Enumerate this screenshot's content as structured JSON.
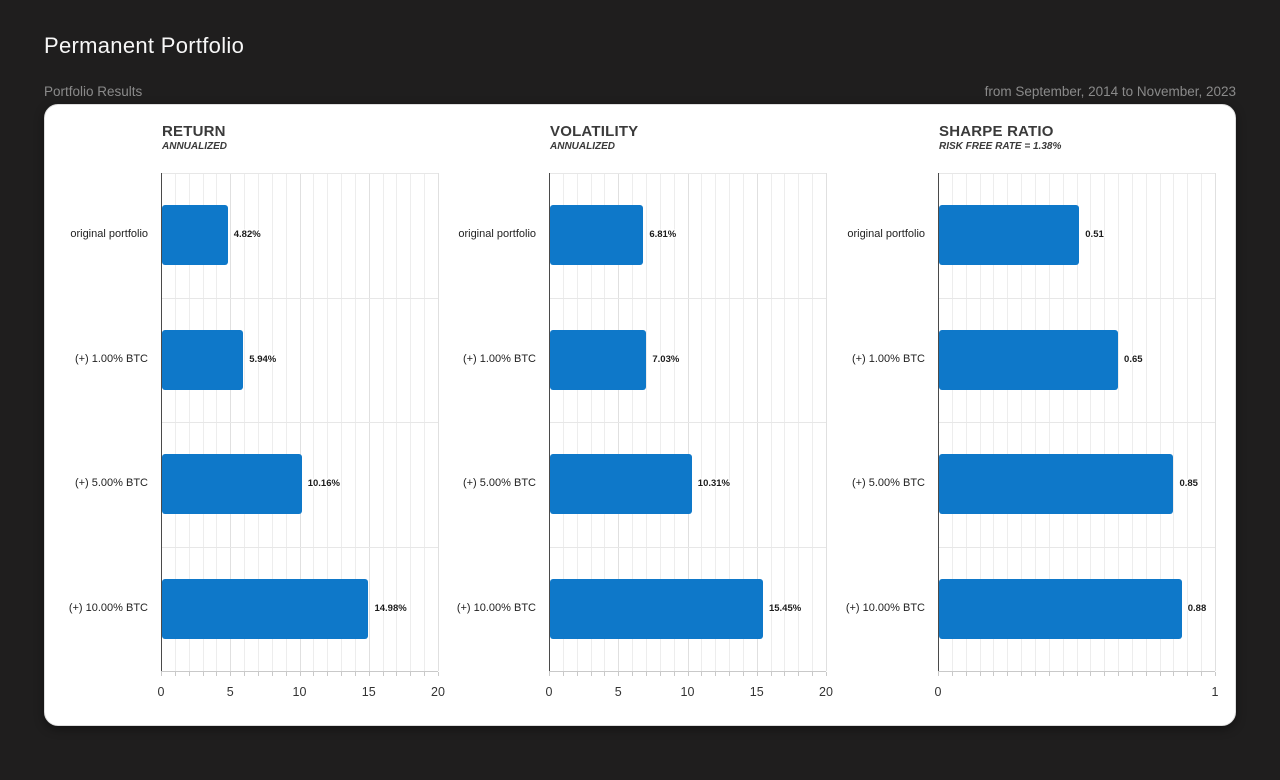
{
  "page": {
    "title": "Permanent Portfolio",
    "section_label": "Portfolio Results",
    "date_range": "from September, 2014 to November, 2023"
  },
  "colors": {
    "page_bg": "#1f1e1e",
    "card_bg": "#ffffff",
    "bar": "#0e78c9",
    "axis_text": "#333333",
    "grid_minor": "#ededed",
    "grid_major": "#e0e0e0"
  },
  "chart_data": [
    {
      "type": "bar",
      "orientation": "horizontal",
      "title": "RETURN",
      "subtitle": "ANNUALIZED",
      "categories": [
        "original portfolio",
        "(+) 1.00% BTC",
        "(+) 5.00% BTC",
        "(+) 10.00% BTC"
      ],
      "values": [
        4.82,
        5.94,
        10.16,
        14.98
      ],
      "value_labels": [
        "4.82%",
        "5.94%",
        "10.16%",
        "14.98%"
      ],
      "xlim": [
        0,
        20
      ],
      "xticks": [
        0,
        5,
        10,
        15,
        20
      ],
      "minor_step": 1,
      "grid": true,
      "legend": false
    },
    {
      "type": "bar",
      "orientation": "horizontal",
      "title": "VOLATILITY",
      "subtitle": "ANNUALIZED",
      "categories": [
        "original portfolio",
        "(+) 1.00% BTC",
        "(+) 5.00% BTC",
        "(+) 10.00% BTC"
      ],
      "values": [
        6.81,
        7.03,
        10.31,
        15.45
      ],
      "value_labels": [
        "6.81%",
        "7.03%",
        "10.31%",
        "15.45%"
      ],
      "xlim": [
        0,
        20
      ],
      "xticks": [
        0,
        5,
        10,
        15,
        20
      ],
      "minor_step": 1,
      "grid": true,
      "legend": false
    },
    {
      "type": "bar",
      "orientation": "horizontal",
      "title": "SHARPE RATIO",
      "subtitle": "RISK FREE RATE = 1.38%",
      "categories": [
        "original portfolio",
        "(+) 1.00% BTC",
        "(+) 5.00% BTC",
        "(+) 10.00% BTC"
      ],
      "values": [
        0.51,
        0.65,
        0.85,
        0.88
      ],
      "value_labels": [
        "0.51",
        "0.65",
        "0.85",
        "0.88"
      ],
      "xlim": [
        0,
        1
      ],
      "xticks": [
        0,
        1
      ],
      "minor_step": 0.05,
      "grid": true,
      "legend": false
    }
  ]
}
